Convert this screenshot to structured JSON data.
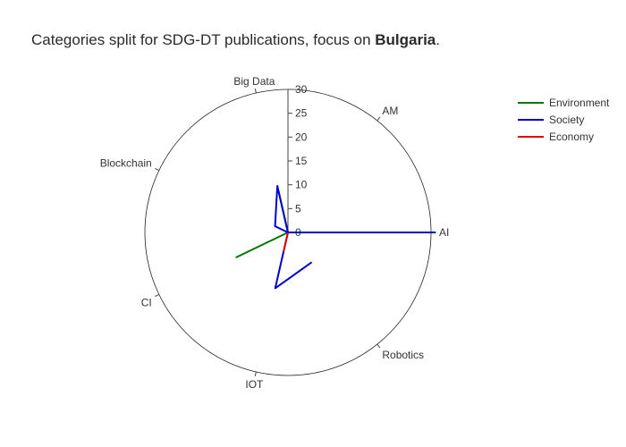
{
  "chart_data": {
    "type": "polar-line",
    "title_prefix": "Categories split for SDG-DT publications, focus on ",
    "title_bold": "Bulgaria",
    "title_suffix": ".",
    "categories": [
      "AI",
      "AM",
      "Big Data",
      "Blockchain",
      "CI",
      "IOT",
      "Robotics"
    ],
    "radial_range": [
      0,
      30
    ],
    "radial_ticks": [
      0,
      5,
      10,
      15,
      20,
      25,
      30
    ],
    "legend_position": "top-right",
    "series": [
      {
        "name": "Environment",
        "color": "#007500",
        "values": [
          0,
          0,
          9,
          0,
          12,
          0,
          0
        ]
      },
      {
        "name": "Society",
        "color": "#0000cc",
        "values": [
          31,
          0,
          10,
          3,
          0,
          12,
          8
        ]
      },
      {
        "name": "Economy",
        "color": "#e00000",
        "values": [
          0,
          0,
          0,
          0,
          0,
          4,
          0
        ]
      }
    ]
  }
}
